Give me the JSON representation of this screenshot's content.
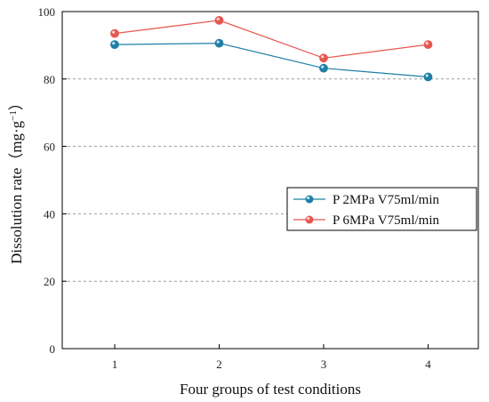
{
  "chart_data": {
    "type": "line",
    "title": "",
    "xlabel": "Four groups of test conditions",
    "ylabel": "Dissolution rate（mg·g",
    "ylabel_sup": "−1",
    "ylabel_close": "）",
    "categories": [
      "1",
      "2",
      "3",
      "4"
    ],
    "ylim": [
      0,
      100
    ],
    "yticks": [
      "0",
      "20",
      "40",
      "60",
      "80",
      "100"
    ],
    "grid": "horizontal-dashed",
    "legend_position": "right",
    "series": [
      {
        "name": "P 2MPa  V75ml/min",
        "values": [
          90.2,
          90.6,
          83.2,
          80.6
        ],
        "color": "#1f7fa6"
      },
      {
        "name": "P 6MPa  V75ml/min",
        "values": [
          93.5,
          97.4,
          86.2,
          90.2
        ],
        "color": "#e8564f"
      }
    ]
  }
}
